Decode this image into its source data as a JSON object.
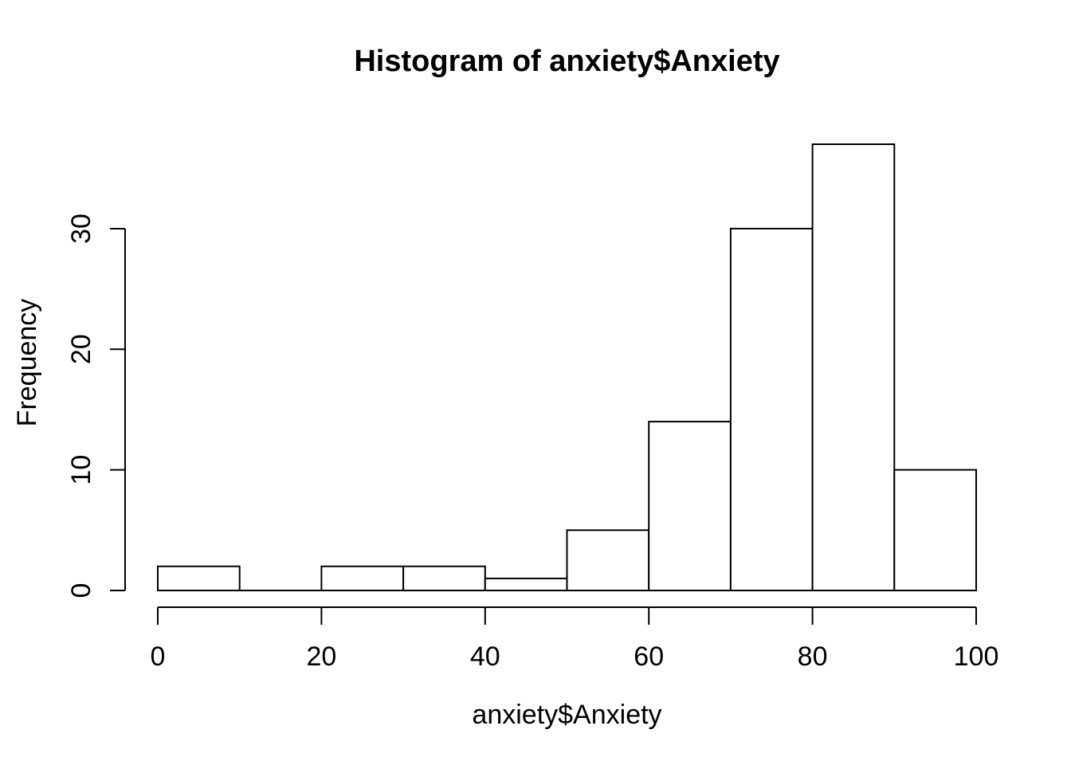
{
  "chart_data": {
    "type": "bar",
    "subtype": "histogram",
    "title": "Histogram of anxiety$Anxiety",
    "xlabel": "anxiety$Anxiety",
    "ylabel": "Frequency",
    "bin_start": 0,
    "bin_width": 10,
    "bin_edges": [
      0,
      10,
      20,
      30,
      40,
      50,
      60,
      70,
      80,
      90,
      100
    ],
    "counts": [
      2,
      0,
      2,
      2,
      1,
      5,
      14,
      30,
      37,
      10
    ],
    "x_ticks": [
      0,
      20,
      40,
      60,
      80,
      100
    ],
    "y_ticks": [
      0,
      10,
      20,
      30
    ],
    "xlim": [
      0,
      100
    ],
    "ylim": [
      0,
      37
    ],
    "grid": false,
    "legend": "none",
    "bar_fill": "#ffffff",
    "bar_stroke": "#000000",
    "axis_color": "#000000",
    "text_color": "#000000",
    "background": "#ffffff"
  }
}
